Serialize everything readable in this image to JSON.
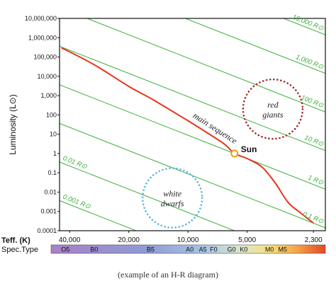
{
  "chart_data": {
    "type": "line",
    "ylabel": "Luminosity  (L⊙)",
    "xlabel": "Tₑₒₒ. (K)",
    "x_axis_label": "Teff. (K)",
    "spectral_row_label": "Spec.Type",
    "y_scale": "log",
    "x_scale": "log-reversed",
    "ylim": [
      0.0001,
      10000000
    ],
    "xlim": [
      45000,
      2000
    ],
    "y_ticks": [
      {
        "value": 10000000,
        "label": "10,000,000"
      },
      {
        "value": 1000000,
        "label": "1,000,000"
      },
      {
        "value": 100000,
        "label": "100,000"
      },
      {
        "value": 10000,
        "label": "10,000"
      },
      {
        "value": 1000,
        "label": "1,000"
      },
      {
        "value": 100,
        "label": "100"
      },
      {
        "value": 10,
        "label": "10"
      },
      {
        "value": 1,
        "label": "1"
      },
      {
        "value": 0.1,
        "label": "0.1"
      },
      {
        "value": 0.01,
        "label": "0.01"
      },
      {
        "value": 0.001,
        "label": "0.001"
      },
      {
        "value": 0.0001,
        "label": "0.0001"
      }
    ],
    "x_ticks": [
      {
        "value": 40000,
        "label": "40,000"
      },
      {
        "value": 20000,
        "label": "20,000"
      },
      {
        "value": 10000,
        "label": "10,000"
      },
      {
        "value": 5000,
        "label": "5,000"
      },
      {
        "value": 2300,
        "label": "2,300"
      }
    ],
    "spectral_types": [
      {
        "label": "O5",
        "temp": 42000
      },
      {
        "label": "B0",
        "temp": 30000
      },
      {
        "label": "B5",
        "temp": 15500
      },
      {
        "label": "A0",
        "temp": 9800
      },
      {
        "label": "A5",
        "temp": 8400
      },
      {
        "label": "F0",
        "temp": 7400
      },
      {
        "label": "G0",
        "temp": 6000
      },
      {
        "label": "K0",
        "temp": 5200
      },
      {
        "label": "M0",
        "temp": 3850
      },
      {
        "label": "M5",
        "temp": 3300
      }
    ],
    "radius_lines": [
      {
        "radius": 10000,
        "label": "10,000 R⊙"
      },
      {
        "radius": 1000,
        "label": "1,000 R⊙"
      },
      {
        "radius": 100,
        "label": "100 R⊙"
      },
      {
        "radius": 10,
        "label": "10 R⊙"
      },
      {
        "radius": 1,
        "label": "1 R⊙"
      },
      {
        "radius": 0.1,
        "label": "0.1 R⊙"
      },
      {
        "radius": 0.01,
        "label": "0.01 R⊙"
      },
      {
        "radius": 0.001,
        "label": "0.001 R⊙"
      }
    ],
    "main_sequence": {
      "name": "main sequence",
      "points": [
        {
          "temp": 44000,
          "lum": 300000
        },
        {
          "temp": 30000,
          "lum": 40000
        },
        {
          "temp": 20000,
          "lum": 3000
        },
        {
          "temp": 15000,
          "lum": 600
        },
        {
          "temp": 10000,
          "lum": 50
        },
        {
          "temp": 8000,
          "lum": 12
        },
        {
          "temp": 6500,
          "lum": 3
        },
        {
          "temp": 5800,
          "lum": 1
        },
        {
          "temp": 5000,
          "lum": 0.55
        },
        {
          "temp": 4200,
          "lum": 0.2
        },
        {
          "temp": 3600,
          "lum": 0.03
        },
        {
          "temp": 3100,
          "lum": 0.003
        },
        {
          "temp": 2700,
          "lum": 0.0009
        },
        {
          "temp": 2300,
          "lum": 0.00025
        }
      ]
    },
    "sun": {
      "label": "Sun",
      "temp": 5800,
      "lum": 1,
      "color": "#f39c12"
    },
    "regions": [
      {
        "name": "red giants",
        "line1": "red",
        "line2": "giants",
        "temp": 3700,
        "lum": 200,
        "color": "#a52a2a"
      },
      {
        "name": "white dwarfs",
        "line1": "white",
        "line2": "dwarfs",
        "temp": 12000,
        "lum": 0.005,
        "color": "#5fb6e0"
      }
    ],
    "colors": {
      "main_sequence": "#e8351c",
      "radius_lines": "#3aae3a",
      "axes": "#111111"
    },
    "caption": "(example of an H-R diagram)"
  }
}
